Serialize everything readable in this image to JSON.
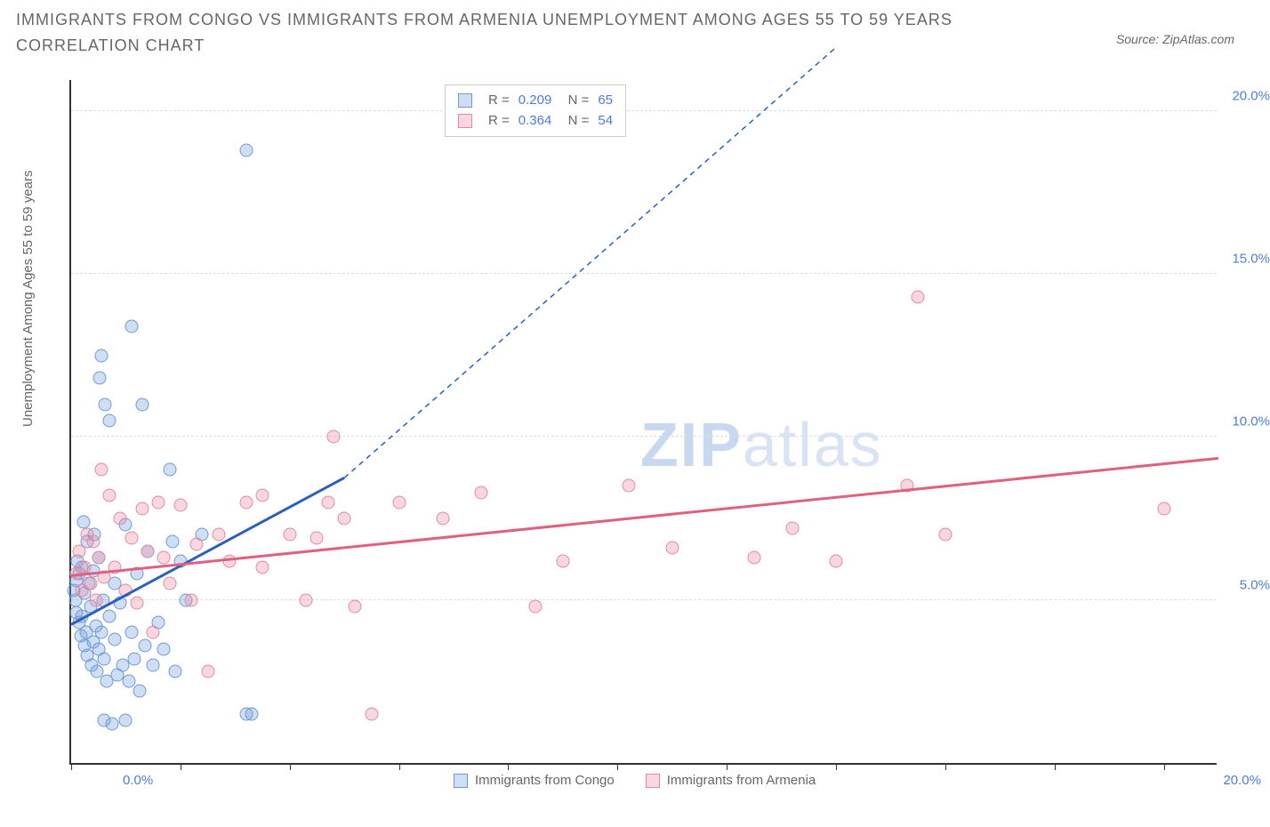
{
  "title": "IMMIGRANTS FROM CONGO VS IMMIGRANTS FROM ARMENIA UNEMPLOYMENT AMONG AGES 55 TO 59 YEARS CORRELATION CHART",
  "source": "Source: ZipAtlas.com",
  "ylabel": "Unemployment Among Ages 55 to 59 years",
  "watermark_a": "ZIP",
  "watermark_b": "atlas",
  "chart": {
    "type": "scatter-with-trend",
    "xlim": [
      0,
      21
    ],
    "ylim": [
      0,
      21
    ],
    "xticks_pct": [
      0,
      2,
      4,
      6,
      8,
      10,
      12,
      14,
      16,
      18,
      20
    ],
    "xlabels": {
      "first": "0.0%",
      "last": "20.0%"
    },
    "yticks": [
      {
        "v": 5,
        "label": "5.0%"
      },
      {
        "v": 10,
        "label": "10.0%"
      },
      {
        "v": 15,
        "label": "15.0%"
      },
      {
        "v": 20,
        "label": "20.0%"
      }
    ],
    "grid_color": "#dddddd",
    "axis_color": "#333333",
    "series": [
      {
        "name": "Immigrants from Congo",
        "fill": "rgba(120,160,220,0.35)",
        "stroke": "#6d9ad6",
        "trend_color": "#2b5fb8",
        "R": "0.209",
        "N": "65",
        "trend": {
          "x1": 0,
          "y1": 4.3,
          "x2": 5,
          "y2": 8.8,
          "ext_x": 14,
          "ext_y": 22
        },
        "points": [
          [
            0.05,
            5.3
          ],
          [
            0.08,
            5.0
          ],
          [
            0.1,
            4.6
          ],
          [
            0.1,
            5.6
          ],
          [
            0.12,
            6.2
          ],
          [
            0.15,
            4.3
          ],
          [
            0.15,
            5.8
          ],
          [
            0.18,
            3.9
          ],
          [
            0.2,
            4.5
          ],
          [
            0.2,
            6.0
          ],
          [
            0.22,
            7.4
          ],
          [
            0.25,
            3.6
          ],
          [
            0.25,
            5.2
          ],
          [
            0.28,
            4.0
          ],
          [
            0.3,
            3.3
          ],
          [
            0.3,
            6.8
          ],
          [
            0.32,
            5.5
          ],
          [
            0.35,
            4.8
          ],
          [
            0.38,
            3.0
          ],
          [
            0.4,
            3.7
          ],
          [
            0.4,
            5.9
          ],
          [
            0.42,
            7.0
          ],
          [
            0.45,
            4.2
          ],
          [
            0.48,
            2.8
          ],
          [
            0.5,
            3.5
          ],
          [
            0.5,
            6.3
          ],
          [
            0.52,
            11.8
          ],
          [
            0.55,
            4.0
          ],
          [
            0.55,
            12.5
          ],
          [
            0.58,
            5.0
          ],
          [
            0.6,
            1.3
          ],
          [
            0.6,
            3.2
          ],
          [
            0.62,
            11.0
          ],
          [
            0.65,
            2.5
          ],
          [
            0.7,
            4.5
          ],
          [
            0.7,
            10.5
          ],
          [
            0.75,
            1.2
          ],
          [
            0.8,
            3.8
          ],
          [
            0.8,
            5.5
          ],
          [
            0.85,
            2.7
          ],
          [
            0.9,
            4.9
          ],
          [
            0.95,
            3.0
          ],
          [
            1.0,
            1.3
          ],
          [
            1.0,
            7.3
          ],
          [
            1.05,
            2.5
          ],
          [
            1.1,
            4.0
          ],
          [
            1.1,
            13.4
          ],
          [
            1.15,
            3.2
          ],
          [
            1.2,
            5.8
          ],
          [
            1.25,
            2.2
          ],
          [
            1.3,
            11.0
          ],
          [
            1.35,
            3.6
          ],
          [
            1.4,
            6.5
          ],
          [
            1.5,
            3.0
          ],
          [
            1.6,
            4.3
          ],
          [
            1.7,
            3.5
          ],
          [
            1.8,
            9.0
          ],
          [
            1.85,
            6.8
          ],
          [
            1.9,
            2.8
          ],
          [
            2.0,
            6.2
          ],
          [
            2.1,
            5.0
          ],
          [
            2.4,
            7.0
          ],
          [
            3.2,
            1.5
          ],
          [
            3.3,
            1.5
          ],
          [
            3.2,
            18.8
          ]
        ]
      },
      {
        "name": "Immigrants from Armenia",
        "fill": "rgba(235,140,165,0.35)",
        "stroke": "#e389a3",
        "trend_color": "#e0607f",
        "R": "0.364",
        "N": "54",
        "trend": {
          "x1": 0,
          "y1": 5.8,
          "x2": 21,
          "y2": 9.4
        },
        "points": [
          [
            0.1,
            5.8
          ],
          [
            0.15,
            6.5
          ],
          [
            0.2,
            5.3
          ],
          [
            0.25,
            6.0
          ],
          [
            0.3,
            7.0
          ],
          [
            0.35,
            5.5
          ],
          [
            0.4,
            6.8
          ],
          [
            0.45,
            5.0
          ],
          [
            0.5,
            6.3
          ],
          [
            0.55,
            9.0
          ],
          [
            0.6,
            5.7
          ],
          [
            0.7,
            8.2
          ],
          [
            0.8,
            6.0
          ],
          [
            0.9,
            7.5
          ],
          [
            1.0,
            5.3
          ],
          [
            1.1,
            6.9
          ],
          [
            1.2,
            4.9
          ],
          [
            1.3,
            7.8
          ],
          [
            1.4,
            6.5
          ],
          [
            1.5,
            4.0
          ],
          [
            1.6,
            8.0
          ],
          [
            1.7,
            6.3
          ],
          [
            1.8,
            5.5
          ],
          [
            2.0,
            7.9
          ],
          [
            2.2,
            5.0
          ],
          [
            2.3,
            6.7
          ],
          [
            2.5,
            2.8
          ],
          [
            2.7,
            7.0
          ],
          [
            2.9,
            6.2
          ],
          [
            3.2,
            8.0
          ],
          [
            3.5,
            6.0
          ],
          [
            4.0,
            7.0
          ],
          [
            4.3,
            5.0
          ],
          [
            4.5,
            6.9
          ],
          [
            4.7,
            8.0
          ],
          [
            4.8,
            10.0
          ],
          [
            5.0,
            7.5
          ],
          [
            5.2,
            4.8
          ],
          [
            5.5,
            1.5
          ],
          [
            6.0,
            8.0
          ],
          [
            6.8,
            7.5
          ],
          [
            7.5,
            8.3
          ],
          [
            8.5,
            4.8
          ],
          [
            9.0,
            6.2
          ],
          [
            10.2,
            8.5
          ],
          [
            11.0,
            6.6
          ],
          [
            12.5,
            6.3
          ],
          [
            13.2,
            7.2
          ],
          [
            14.0,
            6.2
          ],
          [
            15.3,
            8.5
          ],
          [
            15.5,
            14.3
          ],
          [
            16.0,
            7.0
          ],
          [
            20.0,
            7.8
          ],
          [
            3.5,
            8.2
          ]
        ]
      }
    ]
  }
}
